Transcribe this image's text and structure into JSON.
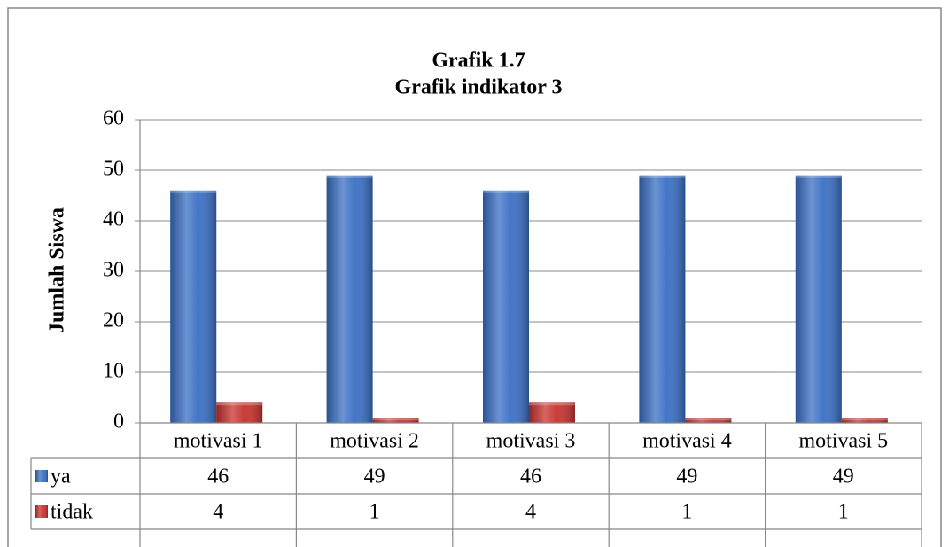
{
  "chart_data": {
    "type": "bar",
    "title": "Grafik  1.7",
    "subtitle": "Grafik indikator 3",
    "y_label": "Jumlah Siswa",
    "categories": [
      "motivasi 1",
      "motivasi 2",
      "motivasi 3",
      "motivasi 4",
      "motivasi 5"
    ],
    "series": [
      {
        "name": "ya",
        "color": "#3a6fc4",
        "values": [
          46,
          49,
          46,
          49,
          49
        ]
      },
      {
        "name": "tidak",
        "color": "#c8322e",
        "values": [
          4,
          1,
          4,
          1,
          1
        ]
      }
    ],
    "ylim": [
      0,
      60
    ],
    "yticks": [
      0,
      10,
      20,
      30,
      40,
      50,
      60
    ],
    "grid": true
  }
}
